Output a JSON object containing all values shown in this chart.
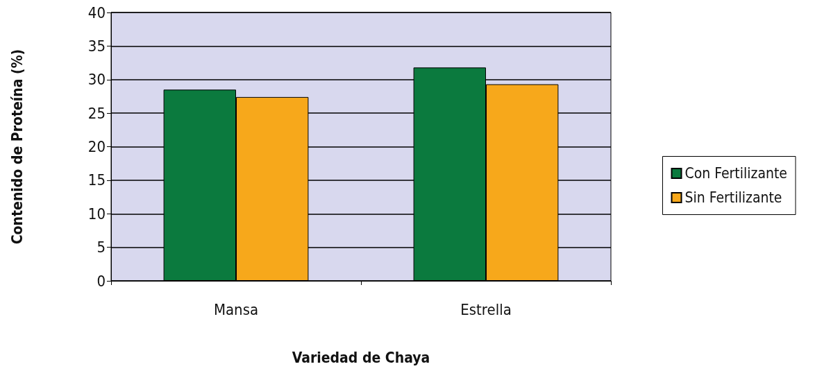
{
  "chart_data": {
    "type": "bar",
    "xlabel": "Variedad de Chaya",
    "ylabel": "Contenido de Proteína (%)",
    "categories": [
      "Mansa",
      "Estrella"
    ],
    "series": [
      {
        "name": "Con Fertilizante",
        "color": "#0b7a3e",
        "values": [
          28.5,
          31.8
        ]
      },
      {
        "name": "Sin Fertilizante",
        "color": "#f7a81b",
        "values": [
          27.4,
          29.3
        ]
      }
    ],
    "ylim": [
      0,
      40
    ],
    "yticks": [
      0,
      5,
      10,
      15,
      20,
      25,
      30,
      35,
      40
    ],
    "grid": "y",
    "legend": "right"
  }
}
